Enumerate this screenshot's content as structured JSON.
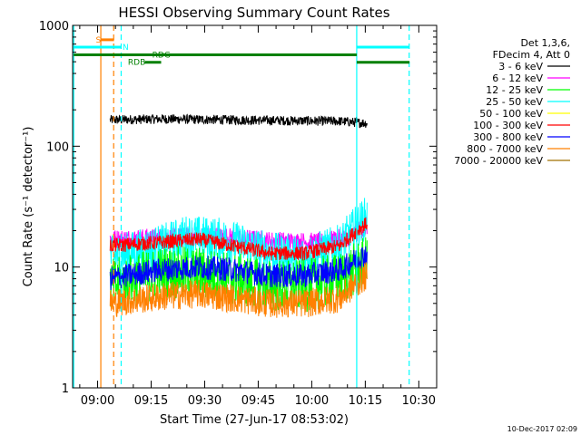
{
  "chart_data": {
    "type": "line",
    "title": "HESSI Observing Summary Count Rates",
    "xlabel": "Start Time (27-Jun-17 08:53:02)",
    "ylabel": "Count Rate (s⁻¹ detector⁻¹)",
    "timestamp": "10-Dec-2017 02:09",
    "x_unit": "minutes after 08:53:02",
    "xlim": [
      0,
      102
    ],
    "ylim": [
      1,
      1000
    ],
    "y_scale": "log",
    "x_ticks": [
      {
        "label": "09:00",
        "value": 7
      },
      {
        "label": "09:15",
        "value": 22
      },
      {
        "label": "09:30",
        "value": 37
      },
      {
        "label": "09:45",
        "value": 52
      },
      {
        "label": "10:00",
        "value": 67
      },
      {
        "label": "10:15",
        "value": 82
      },
      {
        "label": "10:30",
        "value": 97
      }
    ],
    "y_ticks": [
      {
        "label": "1",
        "value": 1
      },
      {
        "label": "10",
        "value": 10
      },
      {
        "label": "100",
        "value": 100
      },
      {
        "label": "1000",
        "value": 1000
      }
    ],
    "legend": {
      "position": "right",
      "header": [
        "Det 1,3,6,",
        "FDecim 4, Att 0"
      ],
      "entries": [
        {
          "label": "3 - 6 keV",
          "color": "#000000"
        },
        {
          "label": "6 - 12 keV",
          "color": "#ff00ff"
        },
        {
          "label": "12 - 25 keV",
          "color": "#00ff00"
        },
        {
          "label": "25 - 50 keV",
          "color": "#00ffff"
        },
        {
          "label": "50 - 100 keV",
          "color": "#ffff00"
        },
        {
          "label": "100 - 300 keV",
          "color": "#ff0000"
        },
        {
          "label": "300 - 800 keV",
          "color": "#0000ff"
        },
        {
          "label": "800 - 7000 keV",
          "color": "#ff8000"
        },
        {
          "label": "7000 - 20000 keV",
          "color": "#a07000"
        }
      ]
    },
    "time_range": [
      10.5,
      82.5
    ],
    "series": [
      {
        "name": "3 - 6 keV",
        "color": "#000000",
        "base": [
          [
            10.5,
            165
          ],
          [
            25,
            168
          ],
          [
            45,
            165
          ],
          [
            60,
            163
          ],
          [
            75,
            161
          ],
          [
            82.5,
            155
          ]
        ],
        "noise": 0.04
      },
      {
        "name": "6 - 12 keV",
        "color": "#ff00ff",
        "base": [
          [
            10.5,
            17
          ],
          [
            25,
            17.5
          ],
          [
            40,
            18
          ],
          [
            55,
            16.5
          ],
          [
            70,
            16
          ],
          [
            78,
            18
          ],
          [
            82.5,
            22
          ]
        ],
        "noise": 0.08
      },
      {
        "name": "25 - 50 keV",
        "color": "#00ffff",
        "base": [
          [
            10.5,
            12
          ],
          [
            25,
            15
          ],
          [
            32,
            18
          ],
          [
            42,
            17
          ],
          [
            55,
            13
          ],
          [
            65,
            12
          ],
          [
            75,
            15
          ],
          [
            82.5,
            26
          ]
        ],
        "noise": 0.18
      },
      {
        "name": "100 - 300 keV",
        "color": "#ff0000",
        "base": [
          [
            10.5,
            15
          ],
          [
            25,
            16
          ],
          [
            35,
            17
          ],
          [
            45,
            15
          ],
          [
            55,
            13
          ],
          [
            65,
            13
          ],
          [
            75,
            15
          ],
          [
            82.5,
            23
          ]
        ],
        "noise": 0.06
      },
      {
        "name": "12 - 25 keV",
        "color": "#00ff00",
        "base": [
          [
            10.5,
            7
          ],
          [
            25,
            9
          ],
          [
            35,
            9
          ],
          [
            45,
            8
          ],
          [
            55,
            7
          ],
          [
            65,
            7
          ],
          [
            75,
            8
          ],
          [
            82.5,
            11
          ]
        ],
        "noise": 0.22
      },
      {
        "name": "300 - 800 keV",
        "color": "#0000ff",
        "base": [
          [
            10.5,
            8
          ],
          [
            25,
            9.5
          ],
          [
            35,
            10
          ],
          [
            45,
            9.5
          ],
          [
            55,
            8.5
          ],
          [
            65,
            8.5
          ],
          [
            75,
            9.5
          ],
          [
            82.5,
            13
          ]
        ],
        "noise": 0.1
      },
      {
        "name": "800 - 7000 keV",
        "color": "#ff8000",
        "base": [
          [
            10.5,
            5
          ],
          [
            25,
            5.7
          ],
          [
            35,
            6
          ],
          [
            45,
            5.5
          ],
          [
            55,
            5
          ],
          [
            65,
            5
          ],
          [
            75,
            5.5
          ],
          [
            82.5,
            8.5
          ]
        ],
        "noise": 0.12
      }
    ],
    "markers": [
      {
        "type": "vline",
        "x": 0.3,
        "color": "#00ffff",
        "dash": false
      },
      {
        "type": "vline",
        "x": 7.9,
        "color": "#ff8000",
        "dash": false
      },
      {
        "type": "vline",
        "x": 11.5,
        "color": "#ff8000",
        "dash": true
      },
      {
        "type": "vline",
        "x": 13.6,
        "color": "#00ffff",
        "dash": true
      },
      {
        "type": "vline",
        "x": 79.6,
        "color": "#00ffff",
        "dash": false
      },
      {
        "type": "vline",
        "x": 94.3,
        "color": "#00ffff",
        "dash": true
      }
    ],
    "flag_bars": [
      {
        "label": "S",
        "x1": 8.0,
        "x2": 11.6,
        "y": 760,
        "color": "#ff8000",
        "label_x": 6.5
      },
      {
        "label": "N",
        "x1": 0.3,
        "x2": 13.7,
        "y": 660,
        "color": "#00ffff",
        "label_x": 14.0
      },
      {
        "label": "N",
        "x1": 79.6,
        "x2": 94.4,
        "y": 660,
        "color": "#00ffff",
        "label_x": null
      },
      {
        "label": "RDG",
        "x1": 0.3,
        "x2": 79.6,
        "y": 570,
        "color": "#008000",
        "label_x": 22.3
      },
      {
        "label": "RDB",
        "x1": 20.2,
        "x2": 24.8,
        "y": 495,
        "color": "#008000",
        "label_x": 15.5
      },
      {
        "label": "",
        "x1": 79.6,
        "x2": 94.4,
        "y": 495,
        "color": "#008000",
        "label_x": null
      }
    ]
  }
}
